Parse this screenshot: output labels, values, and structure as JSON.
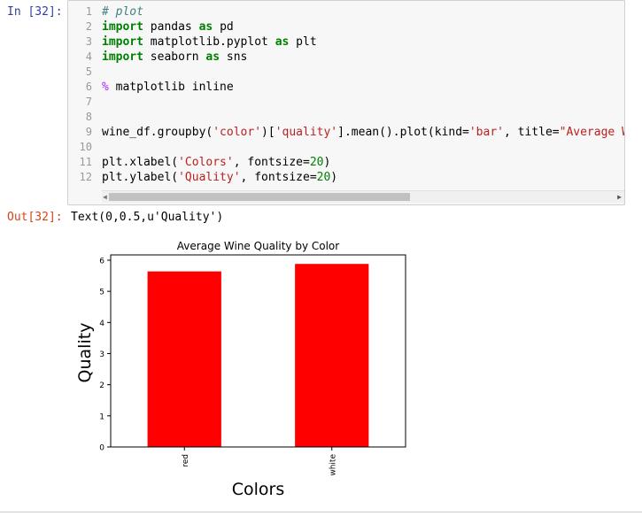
{
  "cell": {
    "in_prompt": "In [32]:",
    "out_prompt": "Out[32]:",
    "output_text": "Text(0,0.5,u'Quality')"
  },
  "code": {
    "line_numbers": [
      "1",
      "2",
      "3",
      "4",
      "5",
      "6",
      "7",
      "8",
      "9",
      "10",
      "11",
      "12"
    ],
    "lines": [
      "# plot",
      "import pandas as pd",
      "import matplotlib.pyplot as plt",
      "import seaborn as sns",
      "",
      "% matplotlib inline",
      "",
      "",
      "wine_df.groupby('color')['quality'].mean().plot(kind='bar', title=\"Average Wi",
      "",
      "plt.xlabel('Colors', fontsize=20)",
      "plt.ylabel('Quality', fontsize=20)"
    ]
  },
  "icons": {
    "scroll_left": "scroll-left-arrow-icon",
    "scroll_right": "scroll-right-arrow-icon"
  },
  "chart_data": {
    "type": "bar",
    "title": "Average Wine Quality by Color",
    "xlabel": "Colors",
    "ylabel": "Quality",
    "categories": [
      "red",
      "white"
    ],
    "values": [
      5.64,
      5.88
    ],
    "ylim": [
      0,
      6.17
    ],
    "yticks": [
      "0",
      "1",
      "2",
      "3",
      "4",
      "5",
      "6"
    ],
    "bar_color": "#ff0000",
    "grid": false
  }
}
